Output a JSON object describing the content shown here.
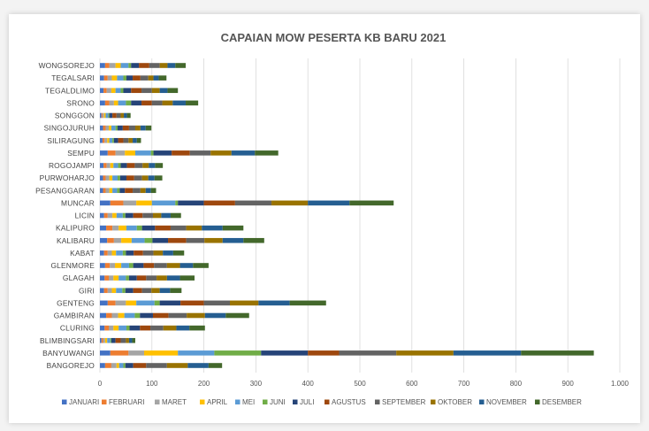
{
  "chart_data": {
    "type": "bar",
    "orientation": "horizontal",
    "stacked": true,
    "title": "CAPAIAN MOW PESERTA KB BARU 2021",
    "xlim": [
      0,
      1000
    ],
    "xticks": [
      "0",
      "100",
      "200",
      "300",
      "400",
      "500",
      "600",
      "700",
      "800",
      "900",
      "1.000"
    ],
    "grid": true,
    "legend_position": "bottom",
    "categories": [
      "WONGSOREJO",
      "TEGALSARI",
      "TEGALDLIMO",
      "SRONO",
      "SONGGON",
      "SINGOJURUH",
      "SILIRAGUNG",
      "SEMPU",
      "ROGOJAMPI",
      "PURWOHARJO",
      "PESANGGARAN",
      "MUNCAR",
      "LICIN",
      "KALIPURO",
      "KALIBARU",
      "KABAT",
      "GLENMORE",
      "GLAGAH",
      "GIRI",
      "GENTENG",
      "GAMBIRAN",
      "CLURING",
      "BLIMBINGSARI",
      "BANYUWANGI",
      "BANGOREJO"
    ],
    "series": [
      {
        "name": "JANUARI",
        "color": "#4472c4",
        "values": [
          10,
          8,
          7,
          10,
          3,
          6,
          5,
          15,
          7,
          6,
          6,
          20,
          8,
          12,
          14,
          8,
          10,
          9,
          8,
          15,
          12,
          9,
          3,
          20,
          10
        ]
      },
      {
        "name": "FEBRUARI",
        "color": "#ed7d31",
        "values": [
          8,
          7,
          6,
          8,
          2,
          5,
          4,
          15,
          6,
          5,
          5,
          25,
          7,
          12,
          13,
          7,
          9,
          8,
          7,
          15,
          11,
          8,
          3,
          35,
          12
        ]
      },
      {
        "name": "MARET",
        "color": "#a5a5a5",
        "values": [
          12,
          8,
          9,
          9,
          3,
          6,
          5,
          18,
          7,
          7,
          7,
          25,
          9,
          12,
          14,
          8,
          10,
          9,
          8,
          20,
          12,
          9,
          4,
          30,
          10
        ]
      },
      {
        "name": "APRIL",
        "color": "#ffc000",
        "values": [
          10,
          10,
          8,
          8,
          3,
          5,
          4,
          20,
          6,
          6,
          6,
          30,
          8,
          15,
          20,
          8,
          12,
          10,
          8,
          20,
          12,
          10,
          4,
          65,
          5
        ]
      },
      {
        "name": "MEI",
        "color": "#5b9bd5",
        "values": [
          15,
          12,
          10,
          15,
          5,
          8,
          6,
          30,
          9,
          10,
          9,
          45,
          12,
          20,
          25,
          13,
          15,
          14,
          12,
          35,
          20,
          15,
          6,
          70,
          8
        ]
      },
      {
        "name": "JUNI",
        "color": "#70ad47",
        "values": [
          5,
          6,
          5,
          10,
          2,
          4,
          3,
          5,
          5,
          5,
          5,
          5,
          5,
          10,
          15,
          6,
          8,
          6,
          6,
          10,
          10,
          6,
          2,
          90,
          4
        ]
      },
      {
        "name": "JULI",
        "color": "#264478",
        "values": [
          15,
          12,
          15,
          20,
          6,
          10,
          8,
          35,
          12,
          12,
          10,
          50,
          15,
          25,
          30,
          15,
          20,
          15,
          15,
          40,
          25,
          20,
          8,
          90,
          15
        ]
      },
      {
        "name": "AGUSTUS",
        "color": "#9e480e",
        "values": [
          20,
          15,
          20,
          20,
          8,
          12,
          10,
          35,
          15,
          15,
          15,
          60,
          18,
          30,
          35,
          18,
          20,
          18,
          17,
          45,
          30,
          20,
          10,
          60,
          25
        ]
      },
      {
        "name": "SEPTEMBER",
        "color": "#636363",
        "values": [
          20,
          15,
          20,
          20,
          8,
          12,
          10,
          40,
          15,
          15,
          15,
          70,
          20,
          30,
          35,
          20,
          25,
          20,
          18,
          50,
          35,
          25,
          10,
          110,
          40
        ]
      },
      {
        "name": "OKTOBER",
        "color": "#997300",
        "values": [
          15,
          10,
          15,
          20,
          6,
          10,
          8,
          40,
          12,
          12,
          10,
          70,
          16,
          30,
          35,
          18,
          25,
          20,
          16,
          55,
          35,
          25,
          6,
          110,
          40
        ]
      },
      {
        "name": "NOVEMBER",
        "color": "#255e91",
        "values": [
          15,
          10,
          15,
          25,
          6,
          10,
          8,
          45,
          12,
          12,
          10,
          80,
          18,
          40,
          40,
          20,
          25,
          25,
          20,
          60,
          40,
          25,
          6,
          130,
          40
        ]
      },
      {
        "name": "DESEMBER",
        "color": "#43682b",
        "values": [
          20,
          15,
          20,
          24,
          7,
          11,
          8,
          45,
          15,
          15,
          10,
          85,
          20,
          40,
          40,
          21,
          30,
          28,
          22,
          70,
          45,
          30,
          6,
          140,
          26
        ]
      }
    ]
  }
}
